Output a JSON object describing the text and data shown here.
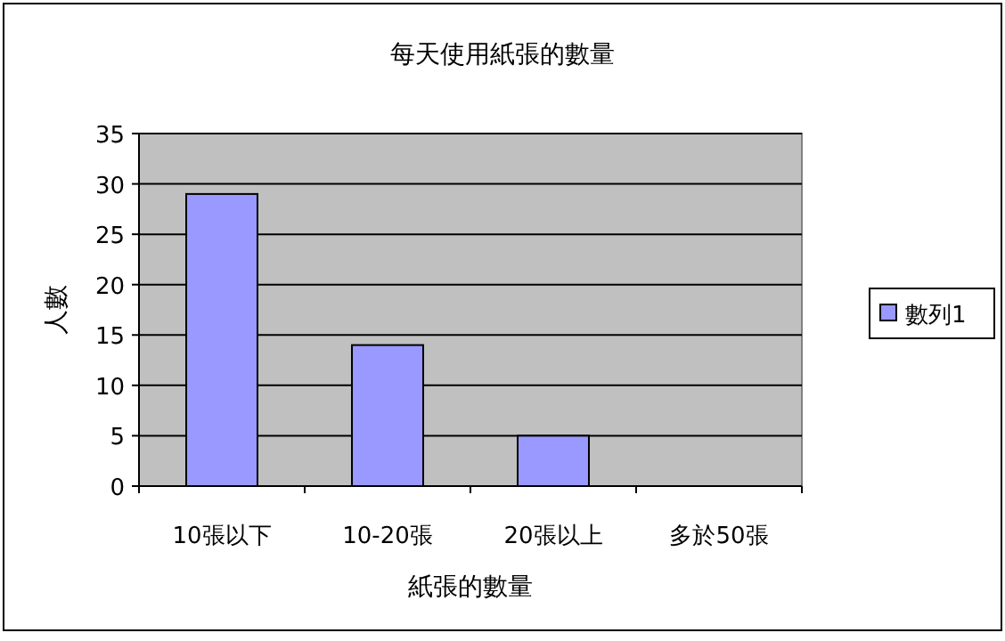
{
  "chart_data": {
    "type": "bar",
    "title": "每天使用紙張的數量",
    "xlabel": "紙張的數量",
    "ylabel": "人數",
    "categories": [
      "10張以下",
      "10-20張",
      "20張以上",
      "多於50張"
    ],
    "series": [
      {
        "name": "數列1",
        "color": "#9999ff",
        "values": [
          29,
          14,
          5,
          0
        ]
      }
    ],
    "ylim": [
      0,
      35
    ],
    "yticks": [
      0,
      5,
      10,
      15,
      20,
      25,
      30,
      35
    ],
    "grid": "y",
    "legend": "right"
  }
}
